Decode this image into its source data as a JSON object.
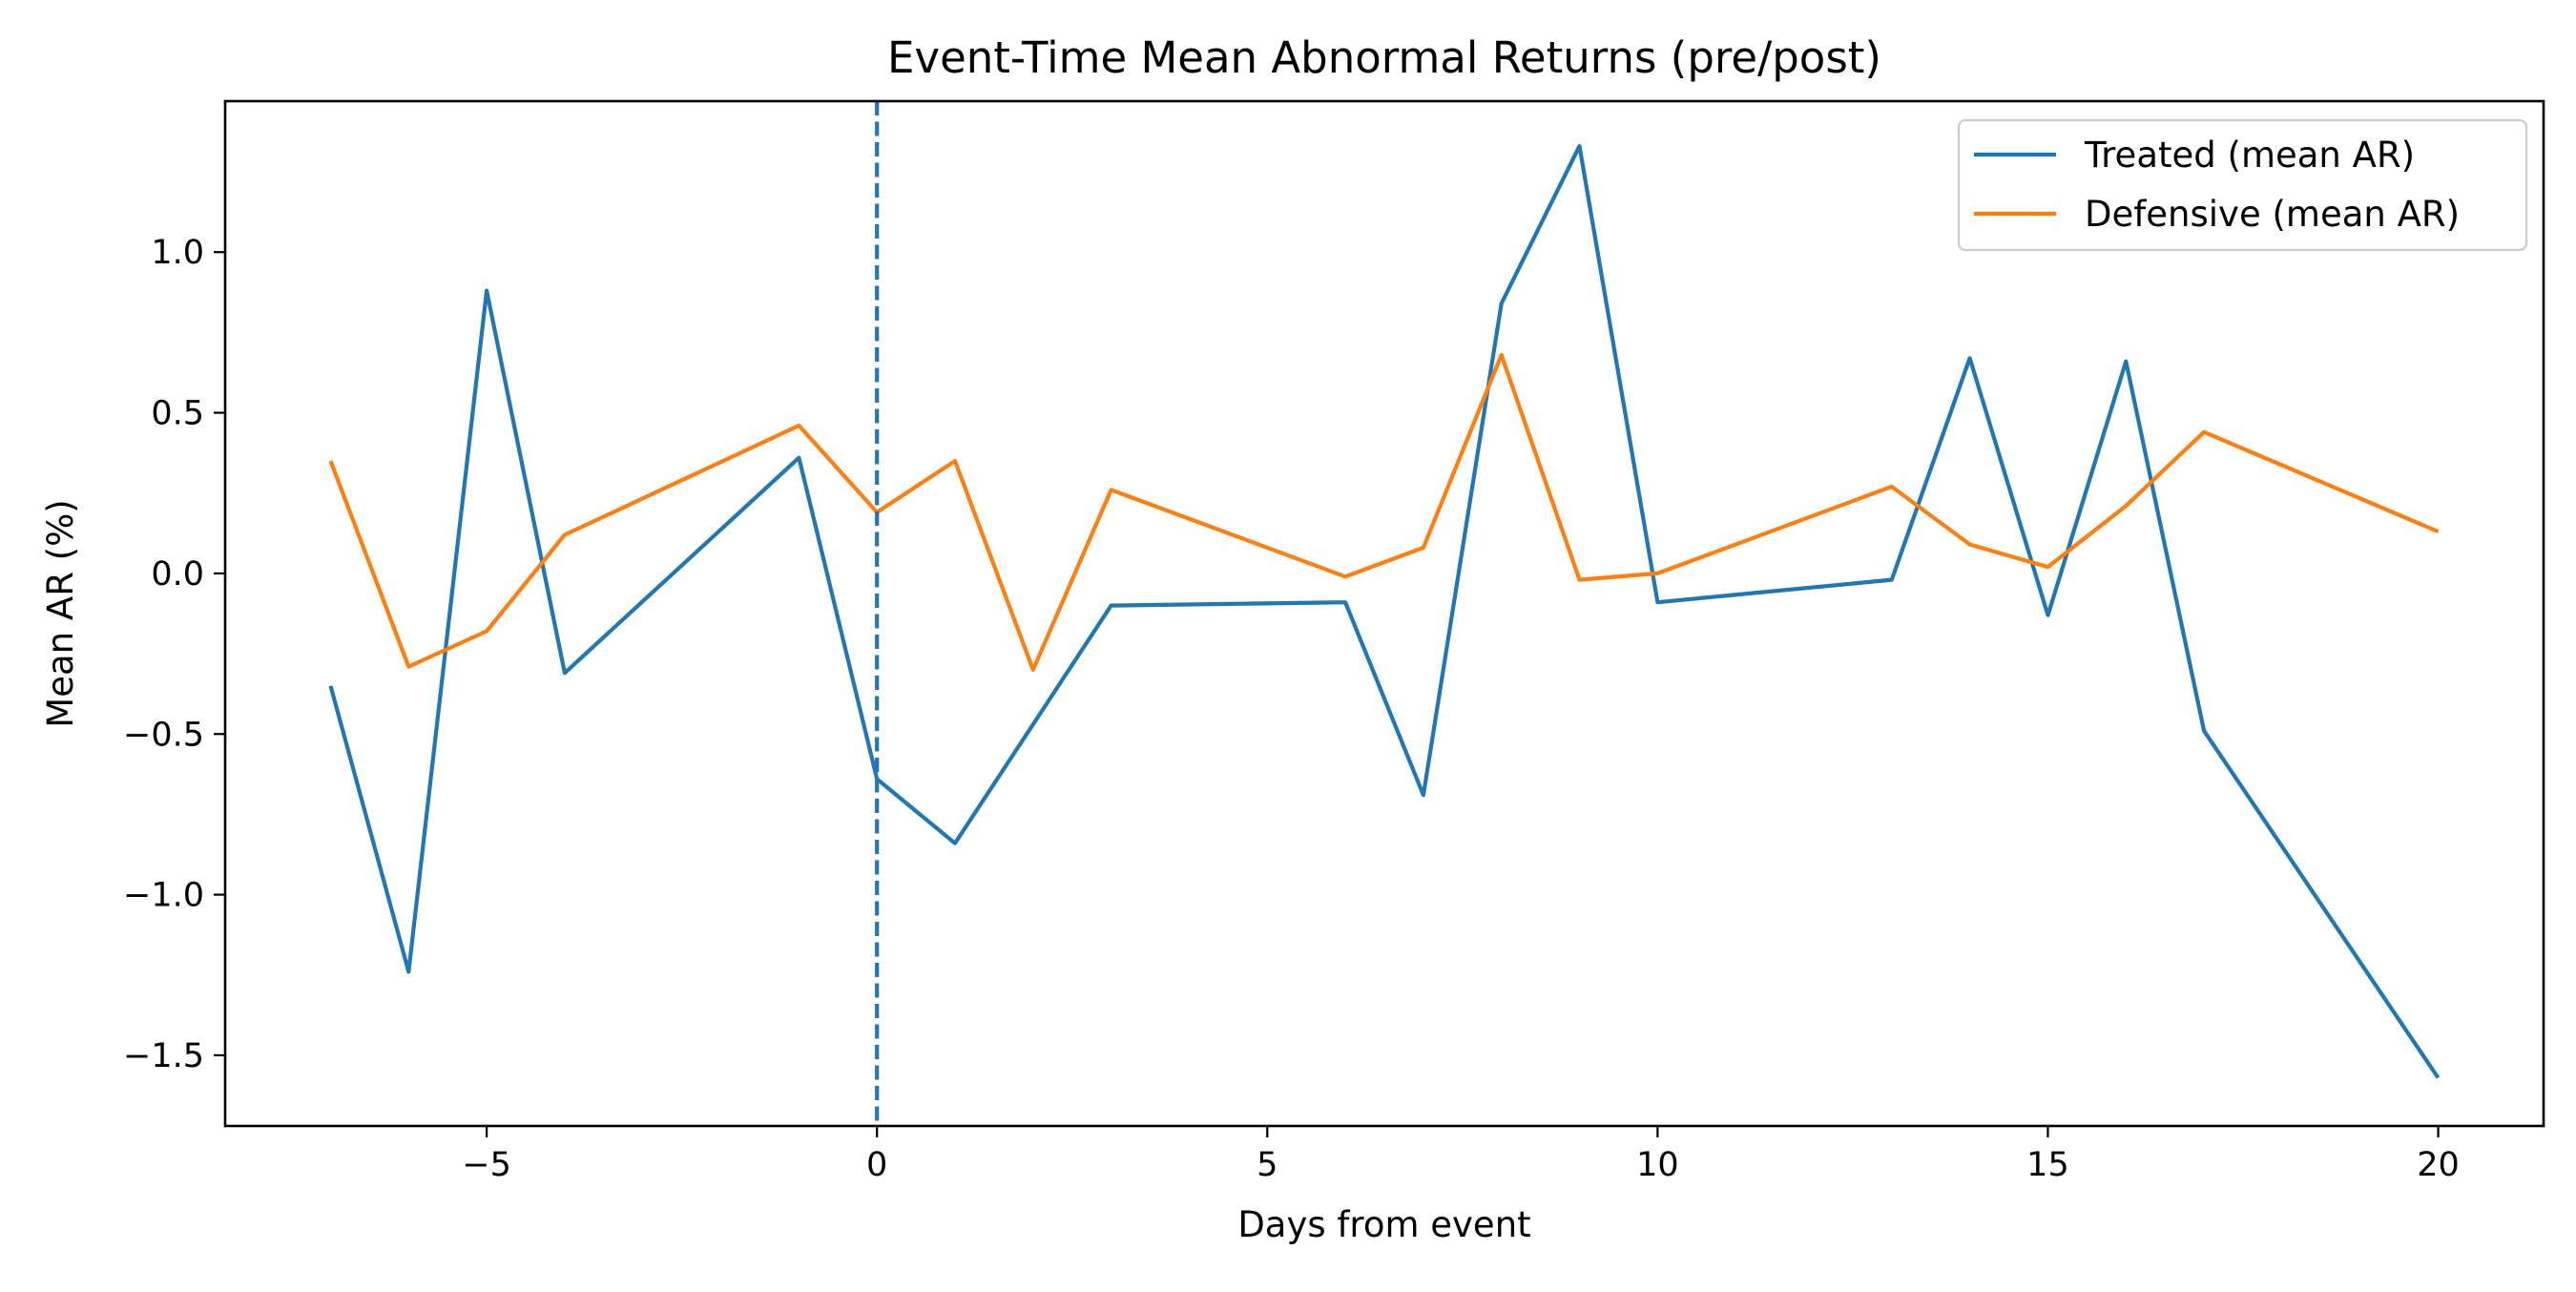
{
  "chart_data": {
    "type": "line",
    "title": "Event-Time Mean Abnormal Returns (pre/post)",
    "xlabel": "Days from event",
    "ylabel": "Mean AR (%)",
    "xlim": [
      -8.35,
      21.35
    ],
    "ylim": [
      -1.72,
      1.47
    ],
    "xticks": [
      -5,
      0,
      5,
      10,
      15,
      20
    ],
    "yticks": [
      -1.5,
      -1.0,
      -0.5,
      0.0,
      0.5,
      1.0
    ],
    "event_line": {
      "x": 0,
      "style": "dashed",
      "color": "#1f77b4"
    },
    "grid": false,
    "legend_position": "top-right",
    "series": [
      {
        "name": "Treated (mean AR)",
        "color": "#1f77b4",
        "x": [
          -7,
          -6,
          -5,
          -4,
          -1,
          0,
          1,
          3,
          6,
          7,
          8,
          9,
          10,
          13,
          14,
          15,
          16,
          17,
          20
        ],
        "y": [
          -0.35,
          -1.24,
          0.88,
          -0.31,
          0.36,
          -0.64,
          -0.84,
          -0.1,
          -0.09,
          -0.69,
          0.84,
          1.33,
          -0.09,
          -0.02,
          0.67,
          -0.13,
          0.66,
          -0.49,
          -1.57
        ]
      },
      {
        "name": "Defensive (mean AR)",
        "color": "#ff7f0e",
        "x": [
          -7,
          -6,
          -5,
          -4,
          -1,
          0,
          1,
          2,
          3,
          6,
          7,
          8,
          9,
          10,
          13,
          14,
          15,
          16,
          17,
          20
        ],
        "y": [
          0.35,
          -0.29,
          -0.18,
          0.12,
          0.46,
          0.19,
          0.35,
          -0.3,
          0.26,
          -0.01,
          0.08,
          0.68,
          -0.02,
          0.0,
          0.27,
          0.09,
          0.02,
          0.21,
          0.44,
          0.13
        ]
      }
    ]
  }
}
